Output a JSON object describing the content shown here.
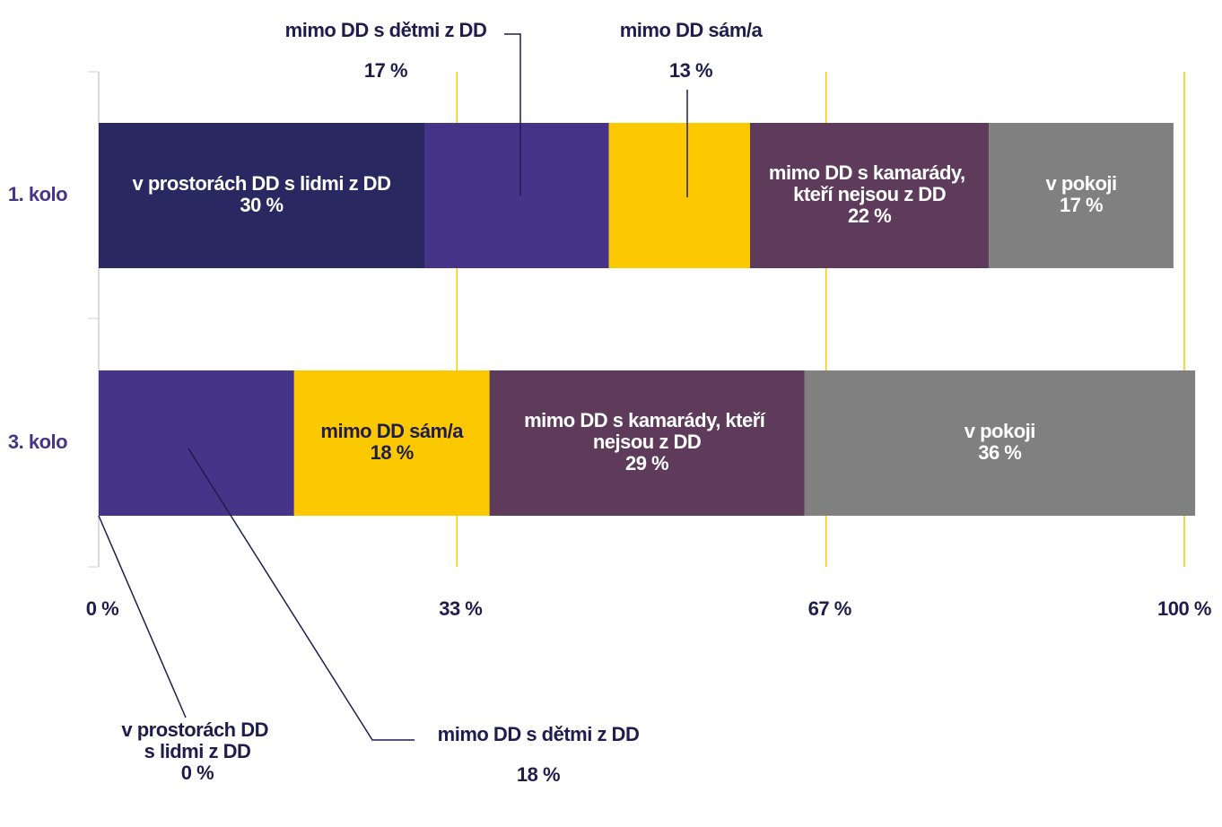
{
  "chart_data": {
    "type": "stacked-bar-horizontal",
    "categories": [
      "1. kolo",
      "3. kolo"
    ],
    "series": [
      {
        "name": "v prostorách DD s lidmi z DD",
        "color": "#2a2860",
        "values": [
          30,
          0
        ],
        "value_labels": [
          "30 %",
          "0 %"
        ]
      },
      {
        "name": "mimo DD s dětmi z DD",
        "color": "#463489",
        "values": [
          17,
          18
        ],
        "value_labels": [
          "17 %",
          "18 %"
        ]
      },
      {
        "name": "mimo DD sám/a",
        "color": "#fcc800",
        "values": [
          13,
          18
        ],
        "value_labels": [
          "13 %",
          "18 %"
        ]
      },
      {
        "name": "mimo DD s kamarády, kteří nejsou z DD",
        "color": "#5e3b5b",
        "values": [
          22,
          29
        ],
        "value_labels": [
          "22 %",
          "29 %"
        ]
      },
      {
        "name": "v pokoji",
        "color": "#808080",
        "values": [
          17,
          36
        ],
        "value_labels": [
          "17 %",
          "36 %"
        ]
      }
    ],
    "xlim": [
      0,
      100
    ],
    "xticks": [
      {
        "value": 0,
        "label": "0 %"
      },
      {
        "value": 33,
        "label": "33 %"
      },
      {
        "value": 67,
        "label": "67 %"
      },
      {
        "value": 100,
        "label": "100 %"
      }
    ],
    "grid": true,
    "grid_color": "#fcc800"
  }
}
